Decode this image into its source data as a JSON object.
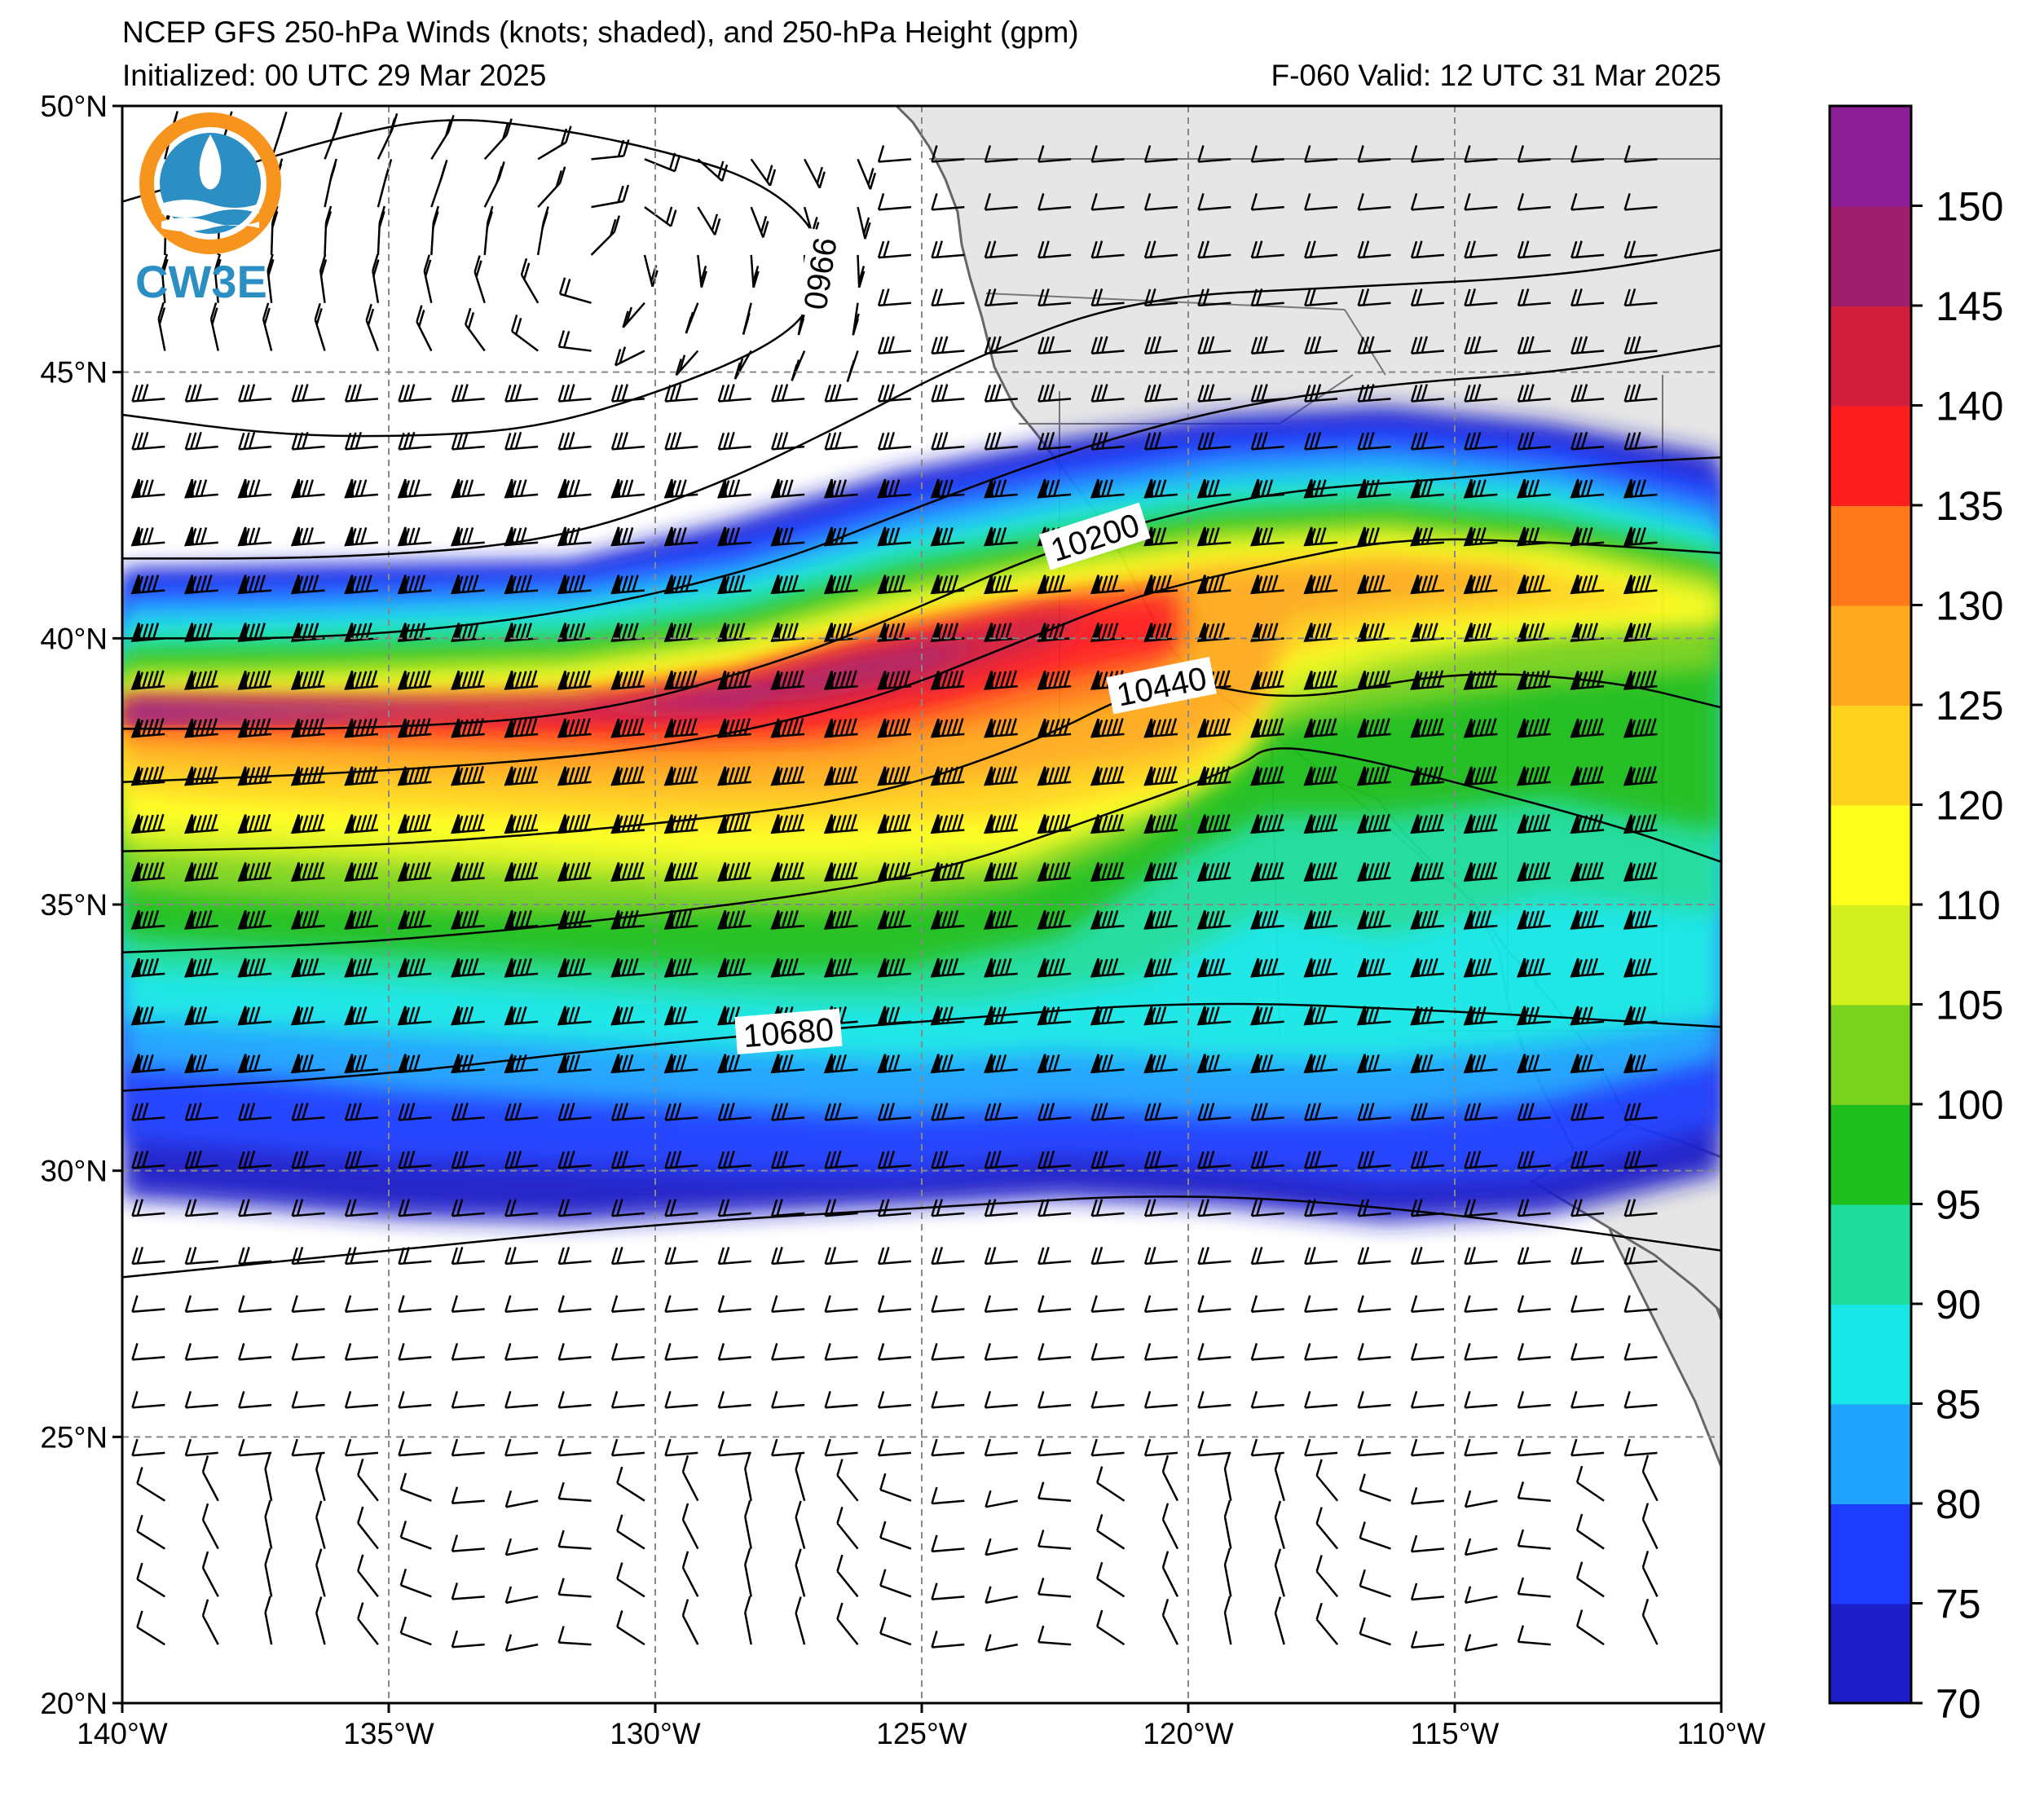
{
  "title": {
    "line1": "NCEP GFS 250-hPa Winds (knots; shaded), and 250-hPa Height (gpm)",
    "init": "Initialized: 00 UTC 29 Mar 2025",
    "valid": "F-060  Valid: 12 UTC 31 Mar 2025"
  },
  "logo": {
    "text": "CW3E",
    "icon": "cw3e-logo-icon"
  },
  "map": {
    "lon_range": [
      -140,
      -110
    ],
    "lat_range": [
      20,
      50
    ],
    "lat_ticks": [
      {
        "value": 50,
        "label": "50°N"
      },
      {
        "value": 45,
        "label": "45°N"
      },
      {
        "value": 40,
        "label": "40°N"
      },
      {
        "value": 35,
        "label": "35°N"
      },
      {
        "value": 30,
        "label": "30°N"
      },
      {
        "value": 25,
        "label": "25°N"
      },
      {
        "value": 20,
        "label": "20°N"
      }
    ],
    "lon_ticks": [
      {
        "value": -140,
        "label": "140°W"
      },
      {
        "value": -135,
        "label": "135°W"
      },
      {
        "value": -130,
        "label": "130°W"
      },
      {
        "value": -125,
        "label": "125°W"
      },
      {
        "value": -120,
        "label": "120°W"
      },
      {
        "value": -115,
        "label": "115°W"
      },
      {
        "value": -110,
        "label": "110°W"
      }
    ],
    "grid": true,
    "land_color": "#e6e6e6",
    "coast_color": "#666666"
  },
  "colorbar": {
    "levels": [
      70,
      75,
      80,
      85,
      90,
      95,
      100,
      105,
      110,
      120,
      125,
      130,
      135,
      140,
      145,
      150
    ],
    "tick_labels": [
      "70",
      "75",
      "80",
      "85",
      "90",
      "95",
      "100",
      "105",
      "110",
      "120",
      "125",
      "130",
      "135",
      "140",
      "145",
      "150"
    ],
    "colors": [
      "#1e1ec8",
      "#1e3cff",
      "#1fa3ff",
      "#19e6e6",
      "#1edc9b",
      "#1ebe1e",
      "#78d21e",
      "#d2f01e",
      "#ffff1e",
      "#ffd21e",
      "#ffaa1e",
      "#ff7819",
      "#ff1e1e",
      "#d21e3c",
      "#a01e6e",
      "#8c1e96"
    ]
  },
  "contours": [
    {
      "label": "9960",
      "lats": [
        [
          -140,
          48.2
        ],
        [
          -138,
          48.8
        ],
        [
          -136,
          49.4
        ],
        [
          -134,
          49.8
        ],
        [
          -132,
          49.6
        ],
        [
          -130,
          49.2
        ],
        [
          -128,
          48.6
        ],
        [
          -126.8,
          47.5
        ],
        [
          -127,
          46.2
        ],
        [
          -128,
          45.4
        ],
        [
          -130,
          44.6
        ],
        [
          -132,
          44.0
        ],
        [
          -134,
          43.8
        ],
        [
          -137,
          43.8
        ],
        [
          -140,
          44.2
        ]
      ]
    },
    {
      "label": "",
      "lats": [
        [
          -140,
          41.5
        ],
        [
          -136,
          41.5
        ],
        [
          -132,
          41.8
        ],
        [
          -129,
          42.8
        ],
        [
          -126.5,
          44.0
        ],
        [
          -124,
          45.3
        ],
        [
          -121,
          46.4
        ],
        [
          -117,
          46.6
        ],
        [
          -113,
          46.8
        ],
        [
          -110,
          47.3
        ]
      ]
    },
    {
      "label": "",
      "lats": [
        [
          -140,
          40.0
        ],
        [
          -136,
          40.0
        ],
        [
          -132,
          40.4
        ],
        [
          -128,
          41.3
        ],
        [
          -125,
          42.5
        ],
        [
          -122,
          43.6
        ],
        [
          -119,
          44.4
        ],
        [
          -116,
          44.8
        ],
        [
          -113,
          45.0
        ],
        [
          -110,
          45.5
        ]
      ]
    },
    {
      "label": "10200",
      "lats": [
        [
          -140,
          38.3
        ],
        [
          -135,
          38.3
        ],
        [
          -131,
          38.6
        ],
        [
          -127.5,
          39.6
        ],
        [
          -125,
          40.6
        ],
        [
          -123,
          41.5
        ],
        [
          -120.5,
          42.3
        ],
        [
          -118,
          42.8
        ],
        [
          -115,
          43.0
        ],
        [
          -112,
          43.3
        ],
        [
          -110,
          43.4
        ]
      ]
    },
    {
      "label": "",
      "lats": [
        [
          -140,
          37.3
        ],
        [
          -135,
          37.5
        ],
        [
          -130,
          37.9
        ],
        [
          -126,
          38.8
        ],
        [
          -123,
          40.0
        ],
        [
          -121,
          40.8
        ],
        [
          -118.5,
          41.4
        ],
        [
          -116,
          41.9
        ],
        [
          -113,
          41.8
        ],
        [
          -110,
          41.6
        ]
      ]
    },
    {
      "label": "10440",
      "lats": [
        [
          -140,
          36.0
        ],
        [
          -135,
          36.1
        ],
        [
          -130,
          36.5
        ],
        [
          -126,
          37.0
        ],
        [
          -123,
          38.0
        ],
        [
          -121,
          39.0
        ],
        [
          -120,
          39.2
        ],
        [
          -118,
          38.8
        ],
        [
          -115,
          39.4
        ],
        [
          -112,
          39.2
        ],
        [
          -110,
          38.7
        ]
      ]
    },
    {
      "label": "",
      "lats": [
        [
          -140,
          34.1
        ],
        [
          -135,
          34.3
        ],
        [
          -130,
          34.8
        ],
        [
          -125,
          35.5
        ],
        [
          -121.5,
          36.7
        ],
        [
          -119,
          37.6
        ],
        [
          -118.5,
          38.0
        ],
        [
          -117,
          37.8
        ],
        [
          -115,
          37.3
        ],
        [
          -112,
          36.5
        ],
        [
          -110,
          35.8
        ]
      ]
    },
    {
      "label": "10680",
      "lats": [
        [
          -140,
          31.5
        ],
        [
          -135,
          31.8
        ],
        [
          -130,
          32.4
        ],
        [
          -125,
          32.8
        ],
        [
          -120,
          33.2
        ],
        [
          -115,
          33.0
        ],
        [
          -110,
          32.7
        ]
      ]
    },
    {
      "label": "",
      "lats": [
        [
          -140,
          28.0
        ],
        [
          -135,
          28.5
        ],
        [
          -130,
          29.0
        ],
        [
          -125,
          29.3
        ],
        [
          -120,
          29.6
        ],
        [
          -115,
          29.2
        ],
        [
          -110,
          28.5
        ]
      ]
    }
  ]
}
